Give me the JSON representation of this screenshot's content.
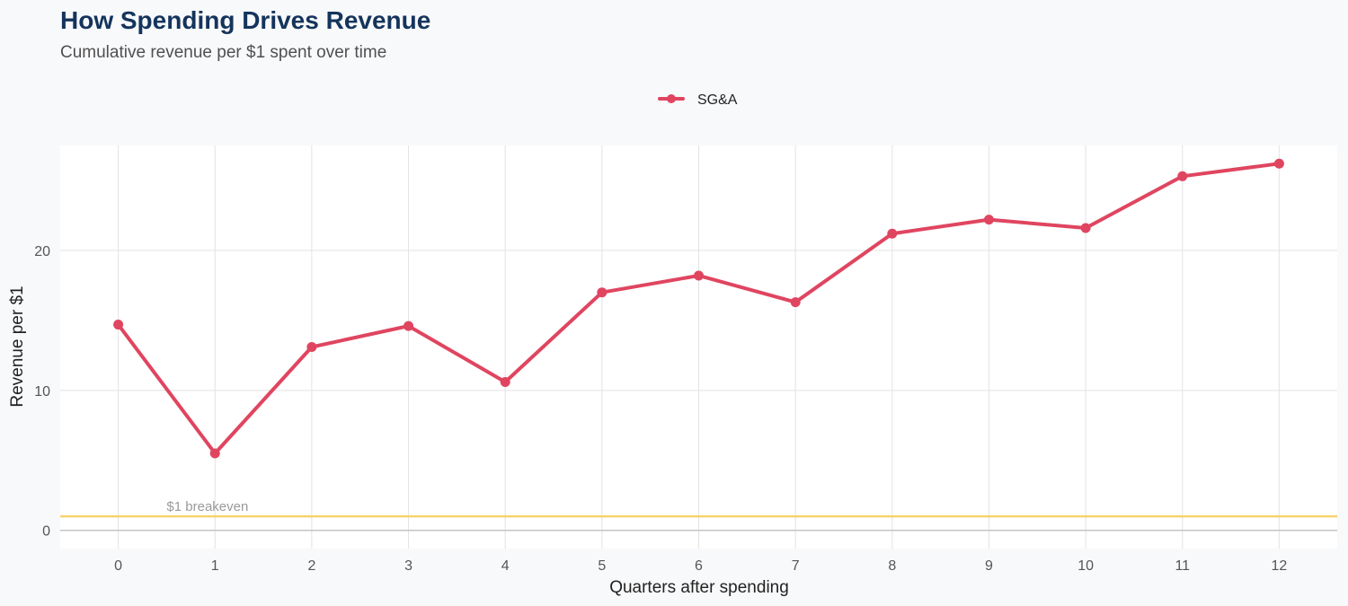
{
  "chart_data": {
    "type": "line",
    "title": "How Spending Drives Revenue",
    "subtitle": "Cumulative revenue per $1 spent over time",
    "xlabel": "Quarters after spending",
    "ylabel": "Revenue per $1",
    "x": [
      0,
      1,
      2,
      3,
      4,
      5,
      6,
      7,
      8,
      9,
      10,
      11,
      12
    ],
    "x_tick_labels": [
      "0",
      "1",
      "2",
      "3",
      "4",
      "5",
      "6",
      "7",
      "8",
      "9",
      "10",
      "11",
      "12"
    ],
    "y_ticks": [
      0,
      10,
      20
    ],
    "y_tick_labels": [
      "0",
      "10",
      "20"
    ],
    "xlim": [
      -0.6,
      12.6
    ],
    "ylim": [
      -1.3,
      27.5
    ],
    "grid": true,
    "legend_position": "top-center",
    "series": [
      {
        "name": "SG&A",
        "color": "#e04560",
        "values": [
          14.7,
          5.5,
          13.1,
          14.6,
          10.6,
          17.0,
          18.2,
          16.3,
          21.2,
          22.2,
          21.6,
          25.3,
          26.2
        ]
      }
    ],
    "reference_lines": [
      {
        "y": 1,
        "label": "$1 breakeven",
        "color": "#f6d36b"
      }
    ],
    "zero_line_color": "#c4c4c4"
  },
  "colors": {
    "background": "#f8f9fb",
    "panel": "#ffffff",
    "grid": "#e3e3e3",
    "title": "#14345c"
  }
}
